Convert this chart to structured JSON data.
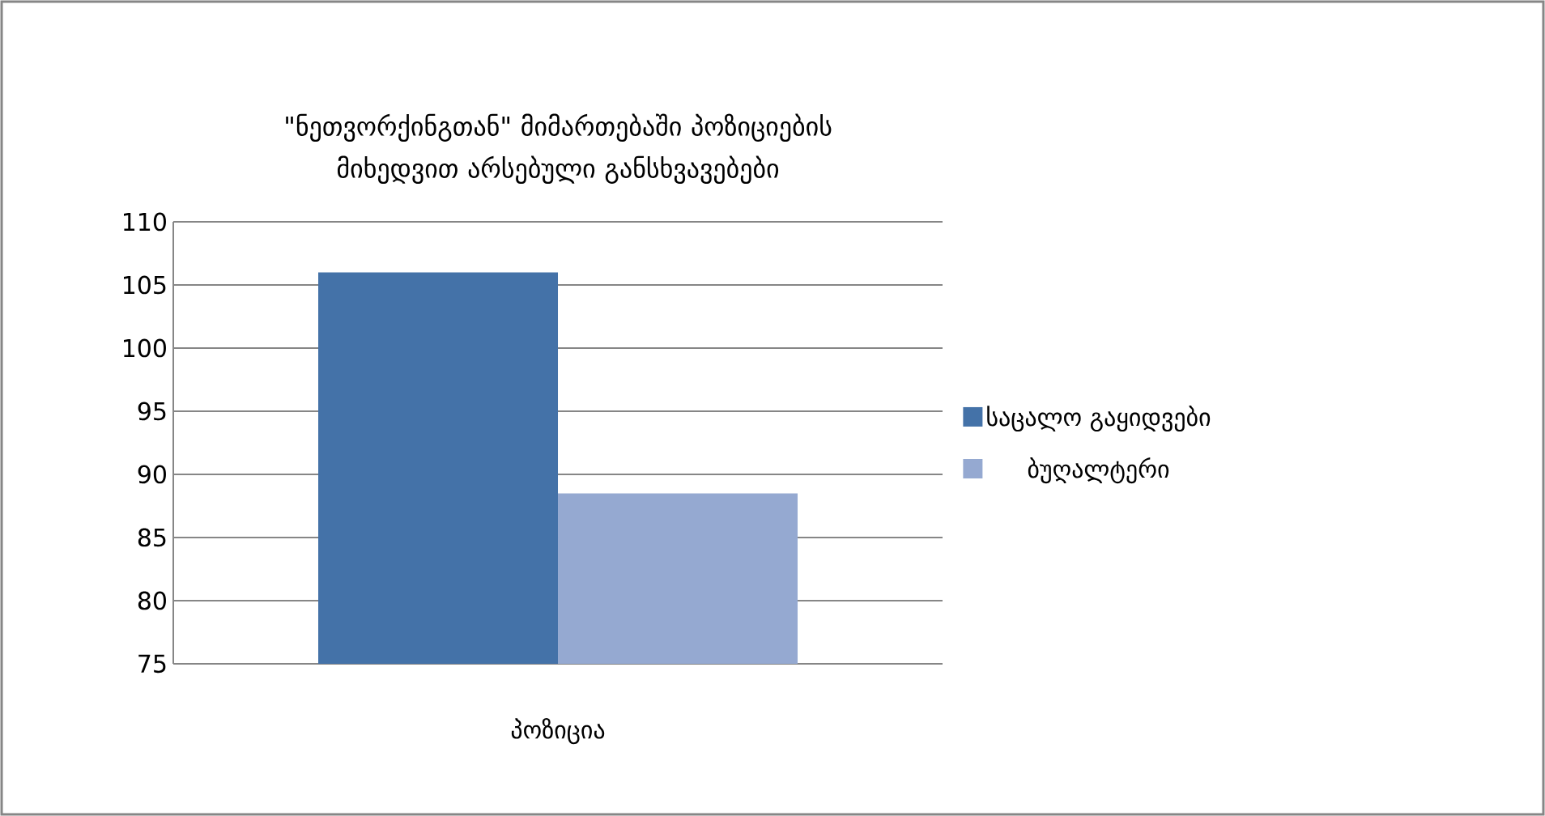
{
  "chart_data": {
    "type": "bar",
    "title": "\"ნეთვორქინგთან\" მიმართებაში პოზიციების მიხედვით არსებული განსხვავებები",
    "categories": [
      "პოზიცია"
    ],
    "series": [
      {
        "name": "საცალო გაყიდვები",
        "color": "#4472a8",
        "values": [
          106.0
        ]
      },
      {
        "name": "ბუღალტერი",
        "color": "#95a9d1",
        "values": [
          88.5
        ]
      }
    ],
    "ylim": [
      75,
      110
    ],
    "yticks": [
      75,
      80,
      85,
      90,
      95,
      100,
      105,
      110
    ],
    "grid": "y",
    "legend": "right"
  }
}
